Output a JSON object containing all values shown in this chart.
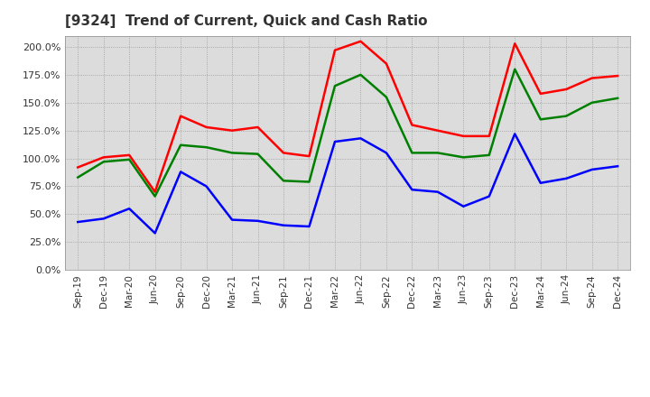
{
  "title": "[9324]  Trend of Current, Quick and Cash Ratio",
  "labels": [
    "Sep-19",
    "Dec-19",
    "Mar-20",
    "Jun-20",
    "Sep-20",
    "Dec-20",
    "Mar-21",
    "Jun-21",
    "Sep-21",
    "Dec-21",
    "Mar-22",
    "Jun-22",
    "Sep-22",
    "Dec-22",
    "Mar-23",
    "Jun-23",
    "Sep-23",
    "Dec-23",
    "Mar-24",
    "Jun-24",
    "Sep-24",
    "Dec-24"
  ],
  "current_ratio": [
    92,
    101,
    103,
    70,
    138,
    128,
    125,
    128,
    105,
    102,
    197,
    205,
    185,
    130,
    125,
    120,
    120,
    203,
    158,
    162,
    172,
    174
  ],
  "quick_ratio": [
    83,
    97,
    99,
    66,
    112,
    110,
    105,
    104,
    80,
    79,
    165,
    175,
    155,
    105,
    105,
    101,
    103,
    180,
    135,
    138,
    150,
    154
  ],
  "cash_ratio": [
    43,
    46,
    55,
    33,
    88,
    75,
    45,
    44,
    40,
    39,
    115,
    118,
    105,
    72,
    70,
    57,
    66,
    122,
    78,
    82,
    90,
    93
  ],
  "current_color": "#FF0000",
  "quick_color": "#008000",
  "cash_color": "#0000FF",
  "bg_color": "#FFFFFF",
  "plot_bg_color": "#DCDCDC",
  "grid_color": "#AAAAAA",
  "ylim": [
    0,
    210
  ],
  "yticks": [
    0,
    25,
    50,
    75,
    100,
    125,
    150,
    175,
    200
  ],
  "line_width": 1.8
}
